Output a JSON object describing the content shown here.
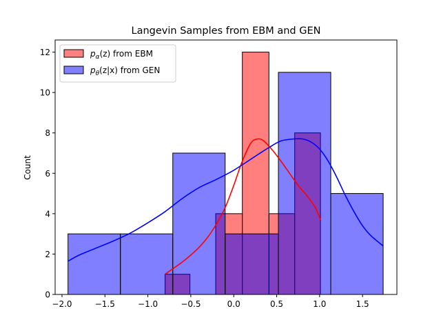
{
  "chart_data": {
    "type": "histogram",
    "title": "Langevin Samples from EBM and GEN",
    "xlabel": "",
    "ylabel": "Count",
    "xlim": [
      -2.08,
      1.9
    ],
    "ylim": [
      0,
      12.6
    ],
    "xticks": [
      -2.0,
      -1.5,
      -1.0,
      -0.5,
      0.0,
      0.5,
      1.0,
      1.5
    ],
    "xtick_labels": [
      "−2.0",
      "−1.5",
      "−1.0",
      "−0.5",
      "0.0",
      "0.5",
      "1.0",
      "1.5"
    ],
    "yticks": [
      0,
      2,
      4,
      6,
      8,
      10,
      12
    ],
    "ytick_labels": [
      "0",
      "2",
      "4",
      "6",
      "8",
      "10",
      "12"
    ],
    "grid": false,
    "legend_position": "upper-left",
    "series": [
      {
        "name": "pα(z) from EBM",
        "legend_main": "p",
        "legend_sub": "α",
        "legend_rest": "(z) from EBM",
        "color": "#ff0000",
        "bins": [
          {
            "x0": -0.8,
            "x1": -0.51,
            "count": 1
          },
          {
            "x0": -0.51,
            "x1": -0.21,
            "count": 0
          },
          {
            "x0": -0.21,
            "x1": 0.1,
            "count": 4
          },
          {
            "x0": 0.1,
            "x1": 0.41,
            "count": 12
          },
          {
            "x0": 0.41,
            "x1": 0.71,
            "count": 4
          },
          {
            "x0": 0.71,
            "x1": 1.01,
            "count": 8
          }
        ],
        "kde": {
          "x": [
            -0.8,
            -0.7,
            -0.6,
            -0.5,
            -0.4,
            -0.3,
            -0.2,
            -0.1,
            0.0,
            0.1,
            0.2,
            0.28,
            0.35,
            0.45,
            0.55,
            0.65,
            0.75,
            0.85,
            0.95,
            1.01
          ],
          "y": [
            1.0,
            1.3,
            1.6,
            1.95,
            2.35,
            2.85,
            3.5,
            4.3,
            5.4,
            6.6,
            7.5,
            7.7,
            7.6,
            7.15,
            6.6,
            6.0,
            5.4,
            4.9,
            4.3,
            3.7
          ]
        }
      },
      {
        "name": "pθ(z|x) from GEN",
        "legend_main": "p",
        "legend_sub": "θ",
        "legend_rest": "(z|x) from GEN",
        "color": "#0000ff",
        "bins": [
          {
            "x0": -1.93,
            "x1": -1.32,
            "count": 3
          },
          {
            "x0": -1.32,
            "x1": -0.71,
            "count": 3
          },
          {
            "x0": -0.71,
            "x1": -0.1,
            "count": 7
          },
          {
            "x0": -0.1,
            "x1": 0.52,
            "count": 3
          },
          {
            "x0": 0.52,
            "x1": 1.13,
            "count": 11
          },
          {
            "x0": 1.13,
            "x1": 1.74,
            "count": 5
          }
        ],
        "kde": {
          "x": [
            -1.93,
            -1.8,
            -1.6,
            -1.4,
            -1.2,
            -1.0,
            -0.8,
            -0.6,
            -0.4,
            -0.2,
            0.0,
            0.2,
            0.4,
            0.55,
            0.7,
            0.8,
            0.9,
            1.0,
            1.1,
            1.2,
            1.3,
            1.4,
            1.5,
            1.6,
            1.74
          ],
          "y": [
            1.65,
            1.95,
            2.3,
            2.65,
            3.05,
            3.55,
            4.1,
            4.75,
            5.3,
            5.7,
            6.15,
            6.7,
            7.25,
            7.6,
            7.7,
            7.7,
            7.55,
            7.2,
            6.6,
            5.8,
            4.9,
            4.1,
            3.4,
            2.9,
            2.4
          ]
        }
      }
    ]
  }
}
